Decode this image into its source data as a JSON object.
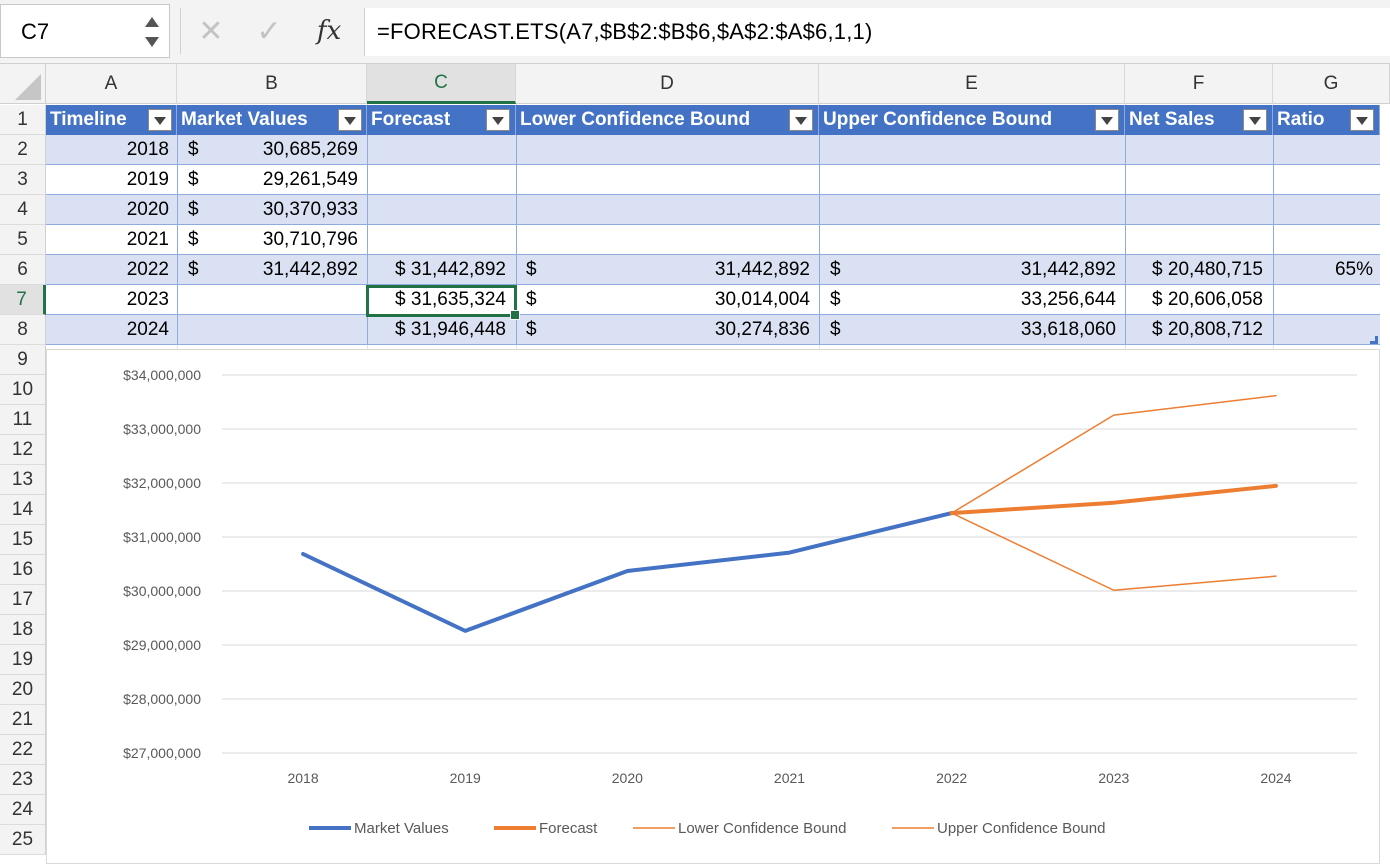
{
  "formula_bar": {
    "name_box": "C7",
    "cancel_icon": "x-icon",
    "enter_icon": "check-icon",
    "fx_label": "fx",
    "formula": "=FORECAST.ETS(A7,$B$2:$B$6,$A$2:$A$6,1,1)"
  },
  "columns": [
    "A",
    "B",
    "C",
    "D",
    "E",
    "F",
    "G"
  ],
  "selected_column": "C",
  "rows": [
    "1",
    "2",
    "3",
    "4",
    "5",
    "6",
    "7",
    "8",
    "9",
    "10",
    "11",
    "12",
    "13",
    "14",
    "15",
    "16",
    "17",
    "18",
    "19",
    "20",
    "21",
    "22",
    "23",
    "24",
    "25"
  ],
  "selected_row": "7",
  "table": {
    "headers": [
      "Timeline",
      "Market Values",
      "Forecast",
      "Lower Confidence Bound",
      "Upper Confidence Bound",
      "Net Sales",
      "Ratio"
    ],
    "data": [
      {
        "timeline": "2018",
        "market_sym": "$",
        "market": "30,685,269",
        "forecast": "",
        "lower_sym": "",
        "lower": "",
        "upper_sym": "",
        "upper": "",
        "net_sales": "",
        "ratio": ""
      },
      {
        "timeline": "2019",
        "market_sym": "$",
        "market": "29,261,549",
        "forecast": "",
        "lower_sym": "",
        "lower": "",
        "upper_sym": "",
        "upper": "",
        "net_sales": "",
        "ratio": ""
      },
      {
        "timeline": "2020",
        "market_sym": "$",
        "market": "30,370,933",
        "forecast": "",
        "lower_sym": "",
        "lower": "",
        "upper_sym": "",
        "upper": "",
        "net_sales": "",
        "ratio": ""
      },
      {
        "timeline": "2021",
        "market_sym": "$",
        "market": "30,710,796",
        "forecast": "",
        "lower_sym": "",
        "lower": "",
        "upper_sym": "",
        "upper": "",
        "net_sales": "",
        "ratio": ""
      },
      {
        "timeline": "2022",
        "market_sym": "$",
        "market": "31,442,892",
        "forecast": "$ 31,442,892",
        "lower_sym": "$",
        "lower": "31,442,892",
        "upper_sym": "$",
        "upper": "31,442,892",
        "net_sales": "$ 20,480,715",
        "ratio": "65%"
      },
      {
        "timeline": "2023",
        "market_sym": "",
        "market": "",
        "forecast": "$ 31,635,324",
        "lower_sym": "$",
        "lower": "30,014,004",
        "upper_sym": "$",
        "upper": "33,256,644",
        "net_sales": "$ 20,606,058",
        "ratio": ""
      },
      {
        "timeline": "2024",
        "market_sym": "",
        "market": "",
        "forecast": "$ 31,946,448",
        "lower_sym": "$",
        "lower": "30,274,836",
        "upper_sym": "$",
        "upper": "33,618,060",
        "net_sales": "$ 20,808,712",
        "ratio": ""
      }
    ]
  },
  "colors": {
    "header_fill": "#4472c4",
    "band_fill": "#d9e1f2",
    "selection": "#217346",
    "series_blue": "#4472c4",
    "series_orange": "#ed7d31"
  },
  "chart_data": {
    "type": "line",
    "categories": [
      "2018",
      "2019",
      "2020",
      "2021",
      "2022",
      "2023",
      "2024"
    ],
    "ylim": [
      27000000,
      34000000
    ],
    "y_ticks": [
      "$27,000,000",
      "$28,000,000",
      "$29,000,000",
      "$30,000,000",
      "$31,000,000",
      "$32,000,000",
      "$33,000,000",
      "$34,000,000"
    ],
    "y_tick_values": [
      27000000,
      28000000,
      29000000,
      30000000,
      31000000,
      32000000,
      33000000,
      34000000
    ],
    "grid": true,
    "legend_position": "bottom",
    "series": [
      {
        "name": "Market Values",
        "values": [
          30685269,
          29261549,
          30370933,
          30710796,
          31442892,
          null,
          null
        ],
        "color": "#4472c4",
        "weight": "thick"
      },
      {
        "name": "Forecast",
        "values": [
          null,
          null,
          null,
          null,
          31442892,
          31635324,
          31946448
        ],
        "color": "#ed7d31",
        "weight": "thick"
      },
      {
        "name": "Lower Confidence Bound",
        "values": [
          null,
          null,
          null,
          null,
          31442892,
          30014004,
          30274836
        ],
        "color": "#ed7d31",
        "weight": "thin"
      },
      {
        "name": "Upper Confidence Bound",
        "values": [
          null,
          null,
          null,
          null,
          31442892,
          33256644,
          33618060
        ],
        "color": "#ed7d31",
        "weight": "thin"
      }
    ]
  }
}
